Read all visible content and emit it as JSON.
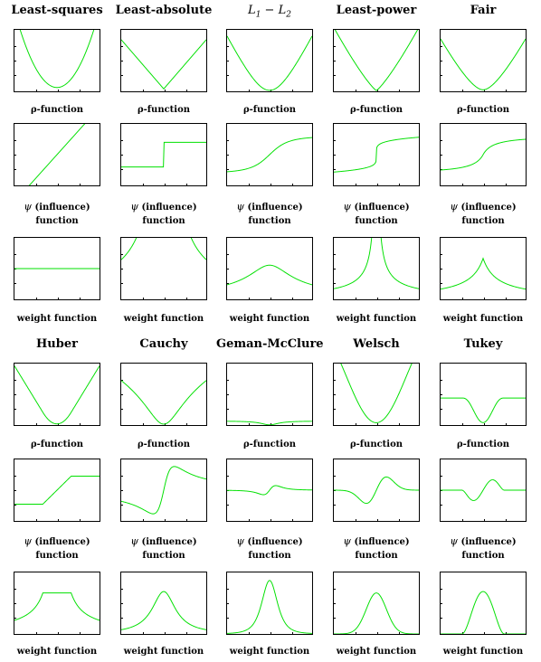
{
  "curve_color": "#00e000",
  "labels": {
    "rho": "ρ-function",
    "psi_prefix": "ψ",
    "psi_rest": "(influence)",
    "psi_function": "function",
    "weight": "weight function"
  },
  "estimators": [
    {
      "id": "least-squares",
      "title": "Least-squares",
      "rho": "ls_rho",
      "psi": "ls_psi",
      "weight": "ls_w"
    },
    {
      "id": "least-absolute",
      "title": "Least-absolute",
      "rho": "la_rho",
      "psi": "la_psi",
      "weight": "la_w"
    },
    {
      "id": "l1-l2",
      "title": "L1 − L2",
      "title_math": true,
      "rho": "l1l2_rho",
      "psi": "l1l2_psi",
      "weight": "l1l2_w"
    },
    {
      "id": "least-power",
      "title": "Least-power",
      "rho": "lp_rho",
      "psi": "lp_psi",
      "weight": "lp_w"
    },
    {
      "id": "fair",
      "title": "Fair",
      "rho": "fair_rho",
      "psi": "fair_psi",
      "weight": "fair_w"
    },
    {
      "id": "huber",
      "title": "Huber",
      "rho": "hub_rho",
      "psi": "hub_psi",
      "weight": "hub_w"
    },
    {
      "id": "cauchy",
      "title": "Cauchy",
      "rho": "cau_rho",
      "psi": "cau_psi",
      "weight": "cau_w"
    },
    {
      "id": "geman-mcclure",
      "title": "Geman-McClure",
      "rho": "gm_rho",
      "psi": "gm_psi",
      "weight": "gm_w"
    },
    {
      "id": "welsch",
      "title": "Welsch",
      "rho": "wel_rho",
      "psi": "wel_psi",
      "weight": "wel_w"
    },
    {
      "id": "tukey",
      "title": "Tukey",
      "rho": "tuk_rho",
      "psi": "tuk_psi",
      "weight": "tuk_w"
    }
  ],
  "chart_data": {
    "type": "line",
    "series_kind": [
      "ρ-function",
      "ψ (influence) function",
      "weight function"
    ],
    "grid": false,
    "layout": "two blocks of 5 columns × 3 rows"
  }
}
